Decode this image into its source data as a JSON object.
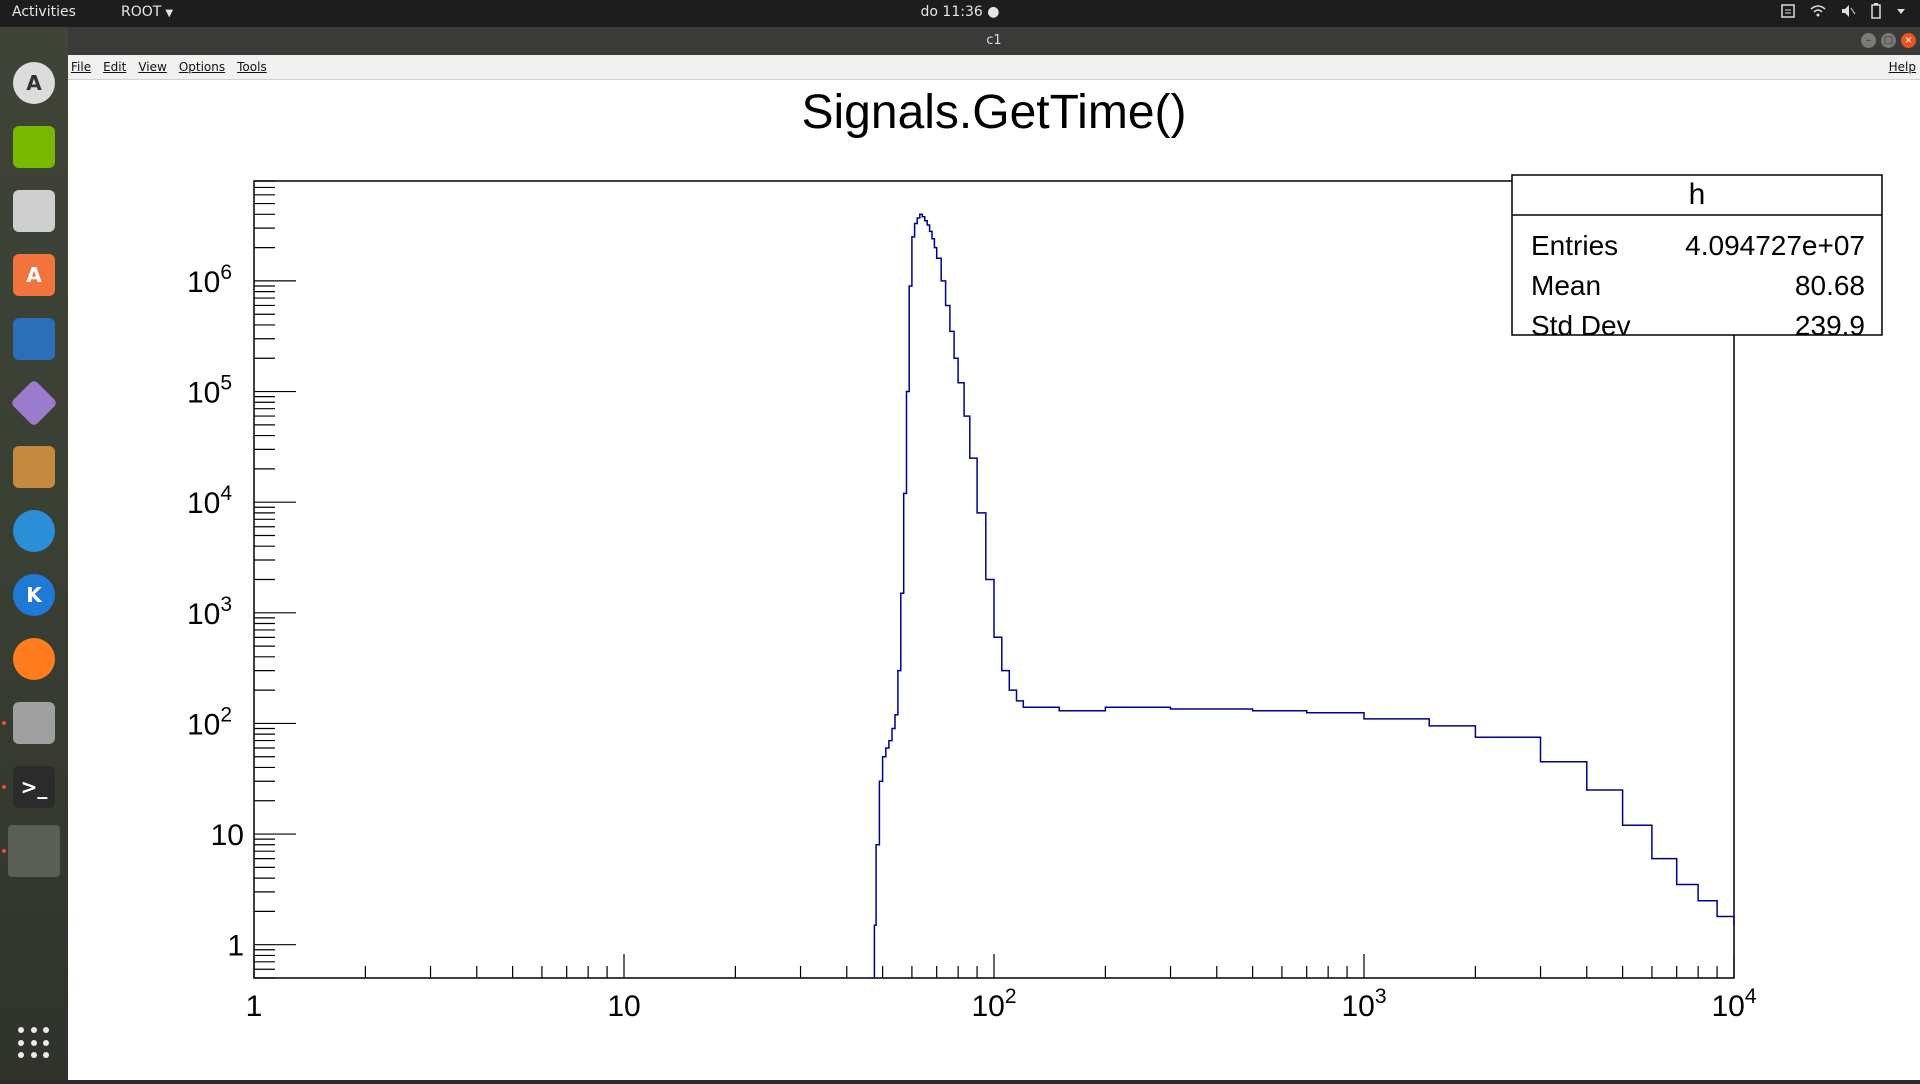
{
  "topbar": {
    "activities": "Activities",
    "app_menu": "ROOT",
    "clock": "do 11:36"
  },
  "dock": {
    "items": [
      {
        "name": "software-updater-icon",
        "letter": "A"
      },
      {
        "name": "nvidia-settings-icon",
        "letter": ""
      },
      {
        "name": "system-settings-icon",
        "letter": ""
      },
      {
        "name": "ubuntu-software-icon",
        "letter": "A"
      },
      {
        "name": "libreoffice-writer-icon",
        "letter": ""
      },
      {
        "name": "diamond-app-icon",
        "letter": ""
      },
      {
        "name": "paint-brush-app-icon",
        "letter": ""
      },
      {
        "name": "sync-app-icon",
        "letter": ""
      },
      {
        "name": "kile-icon",
        "letter": "K"
      },
      {
        "name": "firefox-icon",
        "letter": ""
      },
      {
        "name": "files-icon",
        "letter": ""
      },
      {
        "name": "terminal-icon",
        "letter": ">_"
      },
      {
        "name": "root-window-icon",
        "letter": ""
      }
    ]
  },
  "window": {
    "title": "c1",
    "menu": [
      "File",
      "Edit",
      "View",
      "Options",
      "Tools"
    ],
    "help": "Help"
  },
  "stats": {
    "title": "h",
    "rows": [
      {
        "label": "Entries",
        "value": "4.094727e+07"
      },
      {
        "label": "Mean",
        "value": "80.68"
      },
      {
        "label": "Std Dev",
        "value": "239.9"
      }
    ]
  },
  "colors": {
    "hist": "#00008b",
    "accent": "#e95420"
  },
  "chart_data": {
    "type": "histogram",
    "title": "Signals.GetTime()",
    "xscale": "log",
    "yscale": "log",
    "xlim": [
      1,
      10000
    ],
    "ylim": [
      0.5,
      8000000
    ],
    "xticks": [
      {
        "v": 1,
        "b": "1",
        "e": ""
      },
      {
        "v": 10,
        "b": "10",
        "e": ""
      },
      {
        "v": 100,
        "b": "10",
        "e": "2"
      },
      {
        "v": 1000,
        "b": "10",
        "e": "3"
      },
      {
        "v": 10000,
        "b": "10",
        "e": "4"
      }
    ],
    "yticks": [
      {
        "v": 1,
        "b": "1",
        "e": ""
      },
      {
        "v": 10,
        "b": "10",
        "e": ""
      },
      {
        "v": 100,
        "b": "10",
        "e": "2"
      },
      {
        "v": 1000,
        "b": "10",
        "e": "3"
      },
      {
        "v": 10000,
        "b": "10",
        "e": "4"
      },
      {
        "v": 100000,
        "b": "10",
        "e": "5"
      },
      {
        "v": 1000000,
        "b": "10",
        "e": "6"
      }
    ],
    "series": [
      {
        "name": "h",
        "points": [
          [
            47,
            0.5
          ],
          [
            47.5,
            1.5
          ],
          [
            48,
            8
          ],
          [
            49,
            30
          ],
          [
            50,
            50
          ],
          [
            51,
            60
          ],
          [
            52,
            70
          ],
          [
            53,
            90
          ],
          [
            54,
            120
          ],
          [
            55,
            300
          ],
          [
            56,
            1500
          ],
          [
            57,
            12000
          ],
          [
            58,
            100000
          ],
          [
            59,
            900000
          ],
          [
            60,
            2500000
          ],
          [
            61,
            3300000
          ],
          [
            62,
            3700000
          ],
          [
            63,
            4000000
          ],
          [
            64,
            3800000
          ],
          [
            65,
            3500000
          ],
          [
            66,
            3200000
          ],
          [
            67,
            2800000
          ],
          [
            68,
            2400000
          ],
          [
            69,
            2000000
          ],
          [
            70,
            1600000
          ],
          [
            72,
            1000000
          ],
          [
            74,
            600000
          ],
          [
            76,
            350000
          ],
          [
            78,
            200000
          ],
          [
            80,
            120000
          ],
          [
            83,
            60000
          ],
          [
            86,
            25000
          ],
          [
            90,
            8000
          ],
          [
            95,
            2000
          ],
          [
            100,
            600
          ],
          [
            105,
            300
          ],
          [
            110,
            200
          ],
          [
            115,
            160
          ],
          [
            120,
            140
          ],
          [
            150,
            130
          ],
          [
            200,
            140
          ],
          [
            300,
            135
          ],
          [
            500,
            130
          ],
          [
            700,
            125
          ],
          [
            1000,
            110
          ],
          [
            1500,
            95
          ],
          [
            2000,
            75
          ],
          [
            3000,
            45
          ],
          [
            4000,
            25
          ],
          [
            5000,
            12
          ],
          [
            6000,
            6
          ],
          [
            7000,
            3.5
          ],
          [
            8000,
            2.5
          ],
          [
            9000,
            1.8
          ],
          [
            10000,
            1.5
          ]
        ]
      }
    ]
  }
}
